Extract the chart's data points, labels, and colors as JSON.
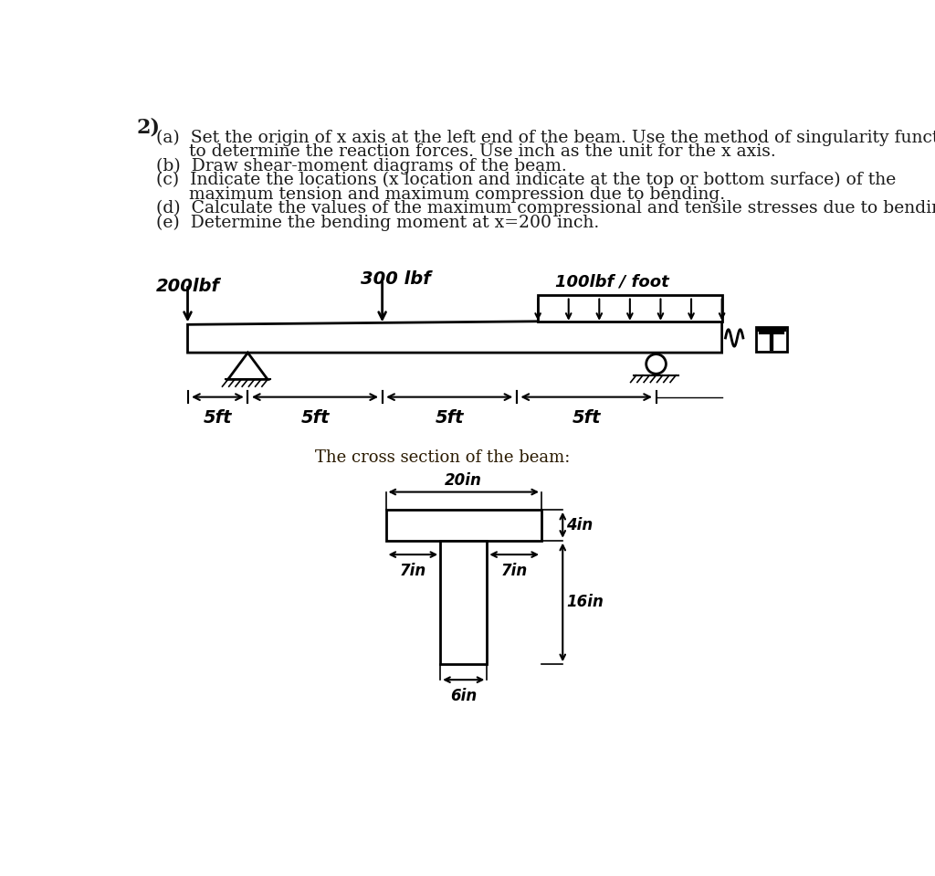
{
  "bg_color": "#ffffff",
  "text_color": "#1a1a1a",
  "problem_number": "2)",
  "line_a1": "(a)  Set the origin of x axis at the left end of the beam. Use the method of singularity functions",
  "line_a2": "      to determine the reaction forces. Use inch as the unit for the x axis.",
  "line_b": "(b)  Draw shear-moment diagrams of the beam.",
  "line_c1": "(c)  Indicate the locations (x location and indicate at the top or bottom surface) of the",
  "line_c2": "      maximum tension and maximum compression due to bending.",
  "line_d": "(d)  Calculate the values of the maximum compressional and tensile stresses due to bending.",
  "line_e": "(e)  Determine the bending moment at x=200 inch.",
  "cross_section_label": "The cross section of the beam:"
}
